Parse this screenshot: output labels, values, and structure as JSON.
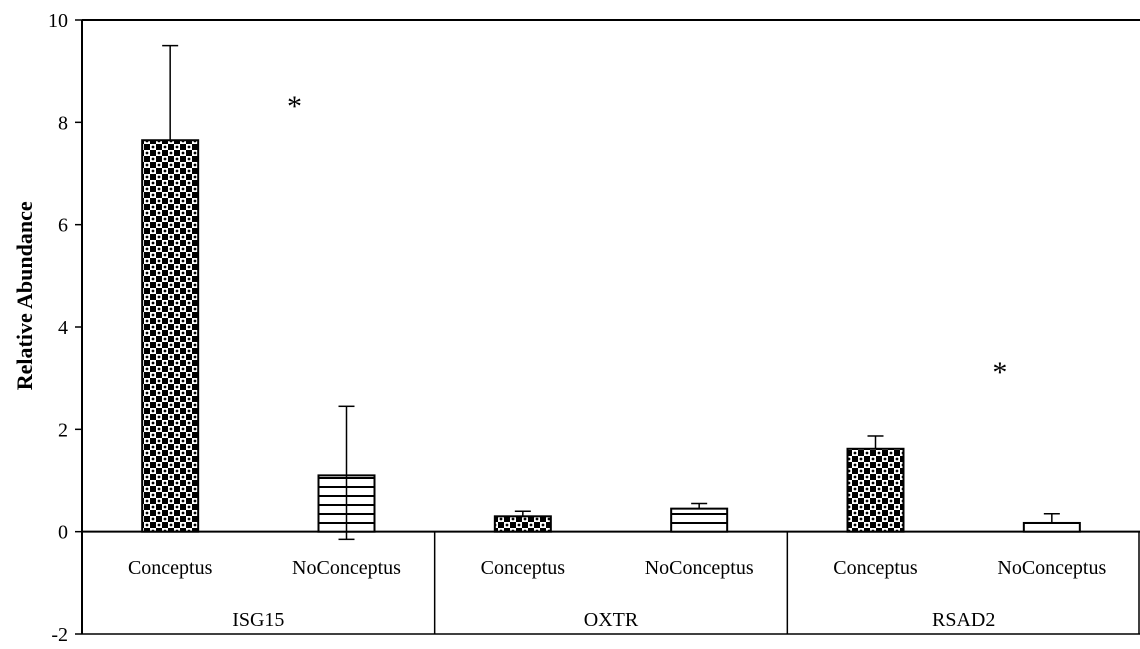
{
  "chart_data": {
    "type": "bar",
    "title": "",
    "xlabel": "",
    "ylabel": "Relative Abundance",
    "ylim": [
      -2,
      10
    ],
    "yticks": [
      -2,
      0,
      2,
      4,
      6,
      8,
      10
    ],
    "groups": [
      "ISG15",
      "OXTR",
      "RSAD2"
    ],
    "categories": [
      "Conceptus",
      "NoConceptus",
      "Conceptus",
      "NoConceptus",
      "Conceptus",
      "NoConceptus"
    ],
    "values": [
      7.65,
      1.1,
      0.3,
      0.45,
      1.62,
      0.17
    ],
    "error_upper": [
      1.85,
      1.35,
      0.1,
      0.1,
      0.25,
      0.18
    ],
    "error_lower": [
      0,
      1.25,
      0,
      0,
      0,
      0
    ],
    "patterns": [
      "checker",
      "hstripe",
      "checker",
      "hstripe",
      "checker",
      "hstripe"
    ],
    "annotations": [
      {
        "text": "*",
        "x_category_index": 1,
        "y": 8.4
      },
      {
        "text": "*",
        "x_category_index": 5,
        "y": 3.2
      }
    ],
    "grid": false,
    "legend": "none"
  }
}
